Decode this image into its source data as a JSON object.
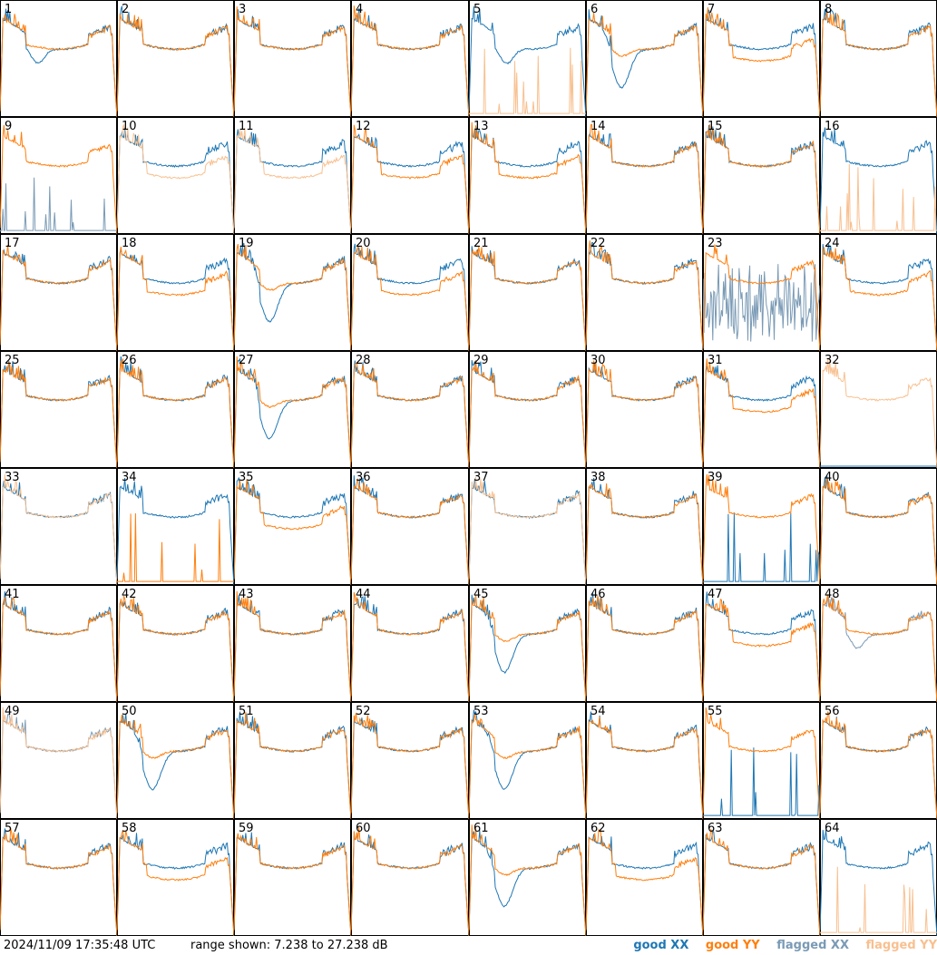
{
  "footer": {
    "timestamp": "2024/11/09 17:35:48 UTC",
    "range_text": "range shown: 7.238 to 27.238 dB"
  },
  "legend": {
    "good_xx": "good XX",
    "good_yy": "good YY",
    "flagged_xx": "flagged XX",
    "flagged_yy": "flagged YY"
  },
  "colors": {
    "good_xx": "#1f77b4",
    "good_yy": "#ff7f0e",
    "flagged_xx": "#7a9ab5",
    "flagged_yy": "#f8c090",
    "panel_border": "#000000",
    "background": "#ffffff"
  },
  "chart_data": {
    "type": "line",
    "layout": "8x8 grid of small multiples",
    "ylim": [
      7.238,
      27.238
    ],
    "yunit": "dB",
    "panels": [
      {
        "id": "1",
        "xx": "good",
        "yy": "good",
        "shape": "dip"
      },
      {
        "id": "2",
        "xx": "good",
        "yy": "good",
        "shape": "bowl"
      },
      {
        "id": "3",
        "xx": "good",
        "yy": "good",
        "shape": "bowl"
      },
      {
        "id": "4",
        "xx": "good",
        "yy": "good",
        "shape": "bowl"
      },
      {
        "id": "5",
        "xx": "good",
        "yy": "flagged",
        "shape": "dip"
      },
      {
        "id": "6",
        "xx": "good",
        "yy": "good",
        "shape": "deepdip"
      },
      {
        "id": "7",
        "xx": "good",
        "yy": "good",
        "shape": "split"
      },
      {
        "id": "8",
        "xx": "good",
        "yy": "good",
        "shape": "bowl"
      },
      {
        "id": "9",
        "xx": "flagged",
        "yy": "good",
        "shape": "dead"
      },
      {
        "id": "10",
        "xx": "good",
        "yy": "flagged",
        "shape": "split"
      },
      {
        "id": "11",
        "xx": "good",
        "yy": "flagged",
        "shape": "split"
      },
      {
        "id": "12",
        "xx": "good",
        "yy": "good",
        "shape": "split"
      },
      {
        "id": "13",
        "xx": "good",
        "yy": "good",
        "shape": "split"
      },
      {
        "id": "14",
        "xx": "good",
        "yy": "good",
        "shape": "bowl"
      },
      {
        "id": "15",
        "xx": "good",
        "yy": "good",
        "shape": "bowl"
      },
      {
        "id": "16",
        "xx": "good",
        "yy": "flagged",
        "shape": "bowl"
      },
      {
        "id": "17",
        "xx": "good",
        "yy": "good",
        "shape": "bowl"
      },
      {
        "id": "18",
        "xx": "good",
        "yy": "good",
        "shape": "split"
      },
      {
        "id": "19",
        "xx": "good",
        "yy": "good",
        "shape": "deepdip"
      },
      {
        "id": "20",
        "xx": "good",
        "yy": "good",
        "shape": "split"
      },
      {
        "id": "21",
        "xx": "good",
        "yy": "good",
        "shape": "bowl"
      },
      {
        "id": "22",
        "xx": "good",
        "yy": "good",
        "shape": "bowl"
      },
      {
        "id": "23",
        "xx": "flagged",
        "yy": "good",
        "shape": "noisy"
      },
      {
        "id": "24",
        "xx": "good",
        "yy": "good",
        "shape": "split"
      },
      {
        "id": "25",
        "xx": "good",
        "yy": "good",
        "shape": "bowl"
      },
      {
        "id": "26",
        "xx": "good",
        "yy": "good",
        "shape": "bowl"
      },
      {
        "id": "27",
        "xx": "good",
        "yy": "good",
        "shape": "deepdip"
      },
      {
        "id": "28",
        "xx": "good",
        "yy": "good",
        "shape": "bowl"
      },
      {
        "id": "29",
        "xx": "good",
        "yy": "good",
        "shape": "bowl"
      },
      {
        "id": "30",
        "xx": "good",
        "yy": "good",
        "shape": "bowl"
      },
      {
        "id": "31",
        "xx": "good",
        "yy": "good",
        "shape": "split"
      },
      {
        "id": "32",
        "xx": "good",
        "yy": "flagged",
        "shape": "flaggedhigh"
      },
      {
        "id": "33",
        "xx": "good",
        "yy": "flagged",
        "shape": "bowl"
      },
      {
        "id": "34",
        "xx": "good",
        "yy": "good",
        "shape": "deadyy"
      },
      {
        "id": "35",
        "xx": "good",
        "yy": "good",
        "shape": "split"
      },
      {
        "id": "36",
        "xx": "good",
        "yy": "good",
        "shape": "bowl"
      },
      {
        "id": "37",
        "xx": "good",
        "yy": "flagged",
        "shape": "bowl"
      },
      {
        "id": "38",
        "xx": "good",
        "yy": "good",
        "shape": "bowl"
      },
      {
        "id": "39",
        "xx": "good",
        "yy": "good",
        "shape": "deadxx"
      },
      {
        "id": "40",
        "xx": "good",
        "yy": "good",
        "shape": "bowl"
      },
      {
        "id": "41",
        "xx": "good",
        "yy": "good",
        "shape": "bowl"
      },
      {
        "id": "42",
        "xx": "good",
        "yy": "good",
        "shape": "bowl"
      },
      {
        "id": "43",
        "xx": "good",
        "yy": "good",
        "shape": "bowl"
      },
      {
        "id": "44",
        "xx": "good",
        "yy": "good",
        "shape": "bowl"
      },
      {
        "id": "45",
        "xx": "good",
        "yy": "good",
        "shape": "deepdip"
      },
      {
        "id": "46",
        "xx": "good",
        "yy": "good",
        "shape": "bowl"
      },
      {
        "id": "47",
        "xx": "good",
        "yy": "good",
        "shape": "split"
      },
      {
        "id": "48",
        "xx": "flagged",
        "yy": "good",
        "shape": "dip"
      },
      {
        "id": "49",
        "xx": "flagged",
        "yy": "flagged",
        "shape": "bowl"
      },
      {
        "id": "50",
        "xx": "good",
        "yy": "good",
        "shape": "deepdip"
      },
      {
        "id": "51",
        "xx": "good",
        "yy": "good",
        "shape": "bowl"
      },
      {
        "id": "52",
        "xx": "good",
        "yy": "good",
        "shape": "bowl"
      },
      {
        "id": "53",
        "xx": "good",
        "yy": "good",
        "shape": "deepdip"
      },
      {
        "id": "54",
        "xx": "good",
        "yy": "good",
        "shape": "bowl"
      },
      {
        "id": "55",
        "xx": "good",
        "yy": "good",
        "shape": "deadxx"
      },
      {
        "id": "56",
        "xx": "good",
        "yy": "good",
        "shape": "bowl"
      },
      {
        "id": "57",
        "xx": "good",
        "yy": "good",
        "shape": "bowl"
      },
      {
        "id": "58",
        "xx": "good",
        "yy": "good",
        "shape": "split"
      },
      {
        "id": "59",
        "xx": "good",
        "yy": "good",
        "shape": "bowl"
      },
      {
        "id": "60",
        "xx": "good",
        "yy": "good",
        "shape": "bowl"
      },
      {
        "id": "61",
        "xx": "good",
        "yy": "good",
        "shape": "deepdip"
      },
      {
        "id": "62",
        "xx": "good",
        "yy": "good",
        "shape": "split"
      },
      {
        "id": "63",
        "xx": "good",
        "yy": "good",
        "shape": "bowl"
      },
      {
        "id": "64",
        "xx": "good",
        "yy": "flagged",
        "shape": "bowl"
      }
    ]
  }
}
